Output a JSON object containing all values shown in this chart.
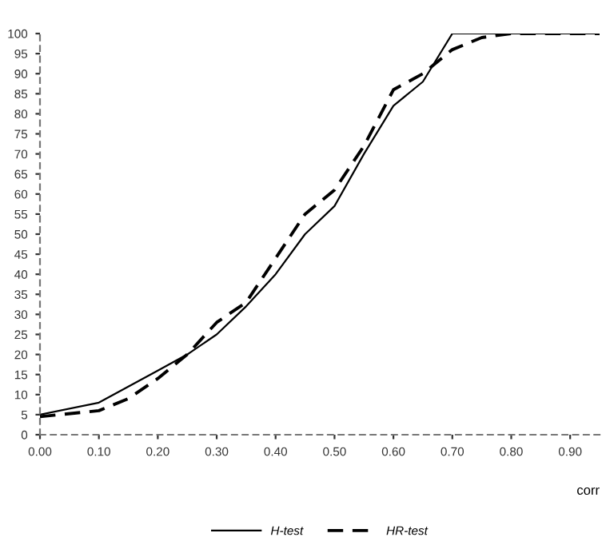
{
  "chart_data": {
    "type": "line",
    "xlabel": "corr",
    "x": [
      0,
      0.1,
      0.15,
      0.2,
      0.25,
      0.3,
      0.35,
      0.4,
      0.45,
      0.5,
      0.55,
      0.6,
      0.65,
      0.7,
      0.75,
      0.8,
      0.95
    ],
    "series": [
      {
        "name": "H-test",
        "color": "#000000",
        "line_style": "solid",
        "x": [
          0,
          0.1,
          0.15,
          0.2,
          0.25,
          0.3,
          0.35,
          0.4,
          0.45,
          0.5,
          0.55,
          0.6,
          0.65,
          0.7,
          0.95
        ],
        "values": [
          5,
          8,
          12,
          16,
          20,
          25,
          32,
          40,
          50,
          57,
          70,
          82,
          88,
          100,
          100
        ]
      },
      {
        "name": "HR-test",
        "color": "#000000",
        "line_style": "dashed",
        "values": [
          4.5,
          6,
          9,
          14,
          20,
          28,
          33,
          44,
          55,
          61,
          72,
          86,
          90,
          96,
          99,
          100,
          100
        ]
      }
    ],
    "xlim": [
      0,
      0.95
    ],
    "ylim": [
      0,
      100
    ],
    "xticks": [
      {
        "value": 0,
        "label": "0.00"
      },
      {
        "value": 0.1,
        "label": "0.10"
      },
      {
        "value": 0.2,
        "label": "0.20"
      },
      {
        "value": 0.3,
        "label": "0.30"
      },
      {
        "value": 0.4,
        "label": "0.40"
      },
      {
        "value": 0.5,
        "label": "0.50"
      },
      {
        "value": 0.6,
        "label": "0.60"
      },
      {
        "value": 0.7,
        "label": "0.70"
      },
      {
        "value": 0.8,
        "label": "0.80"
      },
      {
        "value": 0.9,
        "label": "0.90"
      }
    ],
    "yticks": [
      0,
      5,
      10,
      15,
      20,
      25,
      30,
      35,
      40,
      45,
      50,
      55,
      60,
      65,
      70,
      75,
      80,
      85,
      90,
      95,
      100
    ],
    "grid": false,
    "legend": "bottom",
    "marker": "none"
  }
}
